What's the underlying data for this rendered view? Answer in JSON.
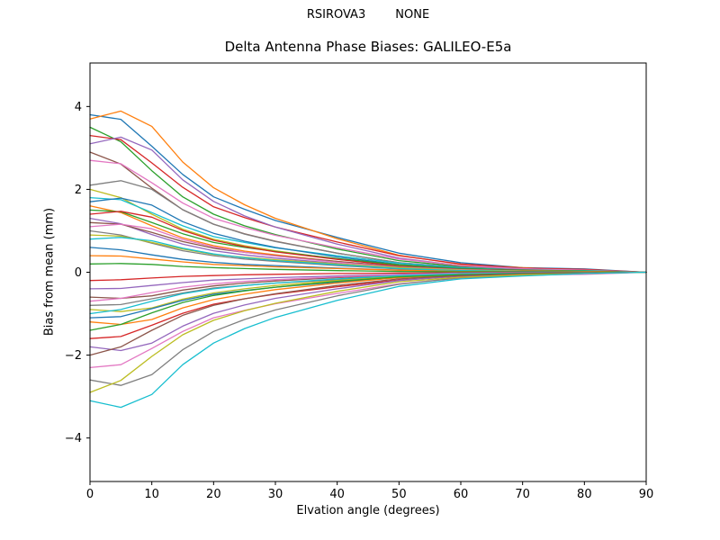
{
  "header": {
    "title": "RSIROVA3        NONE",
    "subtitle": "Delta Antenna Phase Biases: GALILEO-E5a"
  },
  "chart_data": {
    "type": "line",
    "suptitle": "RSIROVA3        NONE",
    "title": "Delta Antenna Phase Biases: GALILEO-E5a",
    "xlabel": "Elvation angle (degrees)",
    "ylabel": "Bias from mean (mm)",
    "xlim": [
      0,
      90
    ],
    "ylim": [
      -5.05,
      5.05
    ],
    "grid": false,
    "legend": "none",
    "frame_color": "#000000",
    "xticks": {
      "values": [
        0,
        10,
        20,
        30,
        40,
        50,
        60,
        70,
        80,
        90
      ],
      "labels": [
        "0",
        "10",
        "20",
        "30",
        "40",
        "50",
        "60",
        "70",
        "80",
        "90"
      ]
    },
    "yticks": {
      "values": [
        -4,
        -2,
        0,
        2,
        4
      ],
      "labels": [
        "−4",
        "−2",
        "0",
        "2",
        "4"
      ]
    },
    "x": [
      0,
      5,
      10,
      15,
      20,
      25,
      30,
      40,
      50,
      60,
      70,
      80,
      90
    ],
    "series": [
      {
        "color": "#1f77b4",
        "values": [
          3.8,
          3.69,
          3.04,
          2.36,
          1.82,
          1.52,
          1.25,
          0.84,
          0.46,
          0.23,
          0.11,
          0.08,
          0
        ]
      },
      {
        "color": "#ff7f0e",
        "values": [
          3.7,
          3.89,
          3.52,
          2.66,
          2.04,
          1.63,
          1.3,
          0.81,
          0.41,
          0.19,
          0.11,
          0.04,
          0
        ]
      },
      {
        "color": "#2ca02c",
        "values": [
          3.5,
          3.15,
          2.45,
          1.82,
          1.4,
          1.12,
          0.91,
          0.56,
          0.28,
          0.14,
          0.07,
          0.04,
          0
        ]
      },
      {
        "color": "#d62728",
        "values": [
          3.3,
          3.2,
          2.64,
          2.05,
          1.58,
          1.32,
          1.09,
          0.73,
          0.4,
          0.2,
          0.1,
          0.07,
          0
        ]
      },
      {
        "color": "#9467bd",
        "values": [
          3.1,
          3.26,
          2.95,
          2.23,
          1.71,
          1.36,
          1.09,
          0.68,
          0.34,
          0.16,
          0.09,
          0.03,
          0
        ]
      },
      {
        "color": "#8c564b",
        "values": [
          2.9,
          2.61,
          2.03,
          1.51,
          1.16,
          0.93,
          0.75,
          0.46,
          0.23,
          0.12,
          0.06,
          0.03,
          0
        ]
      },
      {
        "color": "#e377c2",
        "values": [
          2.7,
          2.62,
          2.16,
          1.67,
          1.3,
          1.08,
          0.89,
          0.59,
          0.32,
          0.16,
          0.08,
          0.05,
          0
        ]
      },
      {
        "color": "#7f7f7f",
        "values": [
          2.1,
          2.21,
          2.0,
          1.51,
          1.16,
          0.92,
          0.74,
          0.46,
          0.23,
          0.11,
          0.06,
          0.02,
          0
        ]
      },
      {
        "color": "#bcbd22",
        "values": [
          2.0,
          1.8,
          1.4,
          1.04,
          0.8,
          0.64,
          0.52,
          0.32,
          0.16,
          0.08,
          0.04,
          0.02,
          0
        ]
      },
      {
        "color": "#17becf",
        "values": [
          1.8,
          1.75,
          1.44,
          1.12,
          0.86,
          0.72,
          0.59,
          0.4,
          0.22,
          0.11,
          0.05,
          0.04,
          0
        ]
      },
      {
        "color": "#1f77b4",
        "values": [
          1.7,
          1.79,
          1.62,
          1.22,
          0.94,
          0.75,
          0.6,
          0.37,
          0.19,
          0.09,
          0.05,
          0.02,
          0
        ]
      },
      {
        "color": "#ff7f0e",
        "values": [
          1.6,
          1.44,
          1.12,
          0.83,
          0.64,
          0.51,
          0.42,
          0.26,
          0.13,
          0.06,
          0.03,
          0.02,
          0
        ]
      },
      {
        "color": "#2ca02c",
        "values": [
          1.5,
          1.46,
          1.2,
          0.93,
          0.72,
          0.6,
          0.5,
          0.33,
          0.18,
          0.09,
          0.05,
          0.03,
          0
        ]
      },
      {
        "color": "#d62728",
        "values": [
          1.4,
          1.47,
          1.33,
          1.01,
          0.77,
          0.62,
          0.49,
          0.31,
          0.15,
          0.07,
          0.04,
          0.01,
          0
        ]
      },
      {
        "color": "#9467bd",
        "values": [
          1.3,
          1.17,
          0.91,
          0.68,
          0.52,
          0.42,
          0.34,
          0.21,
          0.1,
          0.05,
          0.03,
          0.01,
          0
        ]
      },
      {
        "color": "#8c564b",
        "values": [
          1.2,
          1.16,
          0.96,
          0.74,
          0.58,
          0.48,
          0.4,
          0.26,
          0.14,
          0.07,
          0.04,
          0.02,
          0
        ]
      },
      {
        "color": "#e377c2",
        "values": [
          1.1,
          1.16,
          1.05,
          0.79,
          0.61,
          0.48,
          0.39,
          0.24,
          0.12,
          0.06,
          0.03,
          0.01,
          0
        ]
      },
      {
        "color": "#7f7f7f",
        "values": [
          1.0,
          0.9,
          0.7,
          0.52,
          0.4,
          0.32,
          0.26,
          0.16,
          0.08,
          0.04,
          0.02,
          0.01,
          0
        ]
      },
      {
        "color": "#bcbd22",
        "values": [
          0.9,
          0.87,
          0.72,
          0.56,
          0.43,
          0.36,
          0.3,
          0.2,
          0.11,
          0.05,
          0.03,
          0.02,
          0
        ]
      },
      {
        "color": "#17becf",
        "values": [
          0.8,
          0.84,
          0.76,
          0.58,
          0.44,
          0.35,
          0.28,
          0.18,
          0.09,
          0.04,
          0.02,
          0.01,
          0
        ]
      },
      {
        "color": "#1f77b4",
        "values": [
          0.6,
          0.54,
          0.42,
          0.31,
          0.24,
          0.19,
          0.16,
          0.1,
          0.05,
          0.02,
          0.01,
          0.01,
          0
        ]
      },
      {
        "color": "#ff7f0e",
        "values": [
          0.4,
          0.39,
          0.32,
          0.25,
          0.19,
          0.16,
          0.13,
          0.09,
          0.05,
          0.02,
          0.01,
          0.01,
          0
        ]
      },
      {
        "color": "#2ca02c",
        "values": [
          0.2,
          0.21,
          0.19,
          0.14,
          0.11,
          0.09,
          0.07,
          0.04,
          0.02,
          0.01,
          0.01,
          0.0,
          0
        ]
      },
      {
        "color": "#d62728",
        "values": [
          -0.2,
          -0.18,
          -0.14,
          -0.1,
          -0.08,
          -0.06,
          -0.05,
          -0.03,
          -0.02,
          -0.01,
          0.0,
          0.0,
          0
        ]
      },
      {
        "color": "#9467bd",
        "values": [
          -0.4,
          -0.39,
          -0.32,
          -0.25,
          -0.19,
          -0.16,
          -0.13,
          -0.09,
          -0.05,
          -0.02,
          -0.01,
          -0.01,
          0
        ]
      },
      {
        "color": "#8c564b",
        "values": [
          -0.6,
          -0.63,
          -0.57,
          -0.43,
          -0.33,
          -0.26,
          -0.21,
          -0.13,
          -0.07,
          -0.03,
          -0.02,
          -0.01,
          0
        ]
      },
      {
        "color": "#e377c2",
        "values": [
          -0.7,
          -0.63,
          -0.49,
          -0.36,
          -0.28,
          -0.22,
          -0.18,
          -0.11,
          -0.06,
          -0.03,
          -0.01,
          -0.01,
          0
        ]
      },
      {
        "color": "#7f7f7f",
        "values": [
          -0.8,
          -0.78,
          -0.64,
          -0.5,
          -0.38,
          -0.32,
          -0.26,
          -0.18,
          -0.1,
          -0.05,
          -0.02,
          -0.02,
          0
        ]
      },
      {
        "color": "#bcbd22",
        "values": [
          -0.9,
          -0.95,
          -0.86,
          -0.65,
          -0.5,
          -0.4,
          -0.32,
          -0.2,
          -0.1,
          -0.05,
          -0.03,
          -0.01,
          0
        ]
      },
      {
        "color": "#17becf",
        "values": [
          -1.0,
          -0.9,
          -0.7,
          -0.52,
          -0.4,
          -0.32,
          -0.26,
          -0.16,
          -0.08,
          -0.04,
          -0.02,
          -0.01,
          0
        ]
      },
      {
        "color": "#1f77b4",
        "values": [
          -1.1,
          -1.07,
          -0.88,
          -0.68,
          -0.53,
          -0.44,
          -0.36,
          -0.24,
          -0.13,
          -0.07,
          -0.03,
          -0.02,
          0
        ]
      },
      {
        "color": "#ff7f0e",
        "values": [
          -1.2,
          -1.26,
          -1.14,
          -0.86,
          -0.66,
          -0.53,
          -0.42,
          -0.26,
          -0.13,
          -0.06,
          -0.04,
          -0.01,
          0
        ]
      },
      {
        "color": "#2ca02c",
        "values": [
          -1.4,
          -1.26,
          -0.98,
          -0.73,
          -0.56,
          -0.45,
          -0.36,
          -0.22,
          -0.11,
          -0.06,
          -0.03,
          -0.01,
          0
        ]
      },
      {
        "color": "#d62728",
        "values": [
          -1.6,
          -1.55,
          -1.28,
          -0.99,
          -0.77,
          -0.64,
          -0.53,
          -0.35,
          -0.19,
          -0.1,
          -0.05,
          -0.03,
          0
        ]
      },
      {
        "color": "#9467bd",
        "values": [
          -1.8,
          -1.89,
          -1.71,
          -1.3,
          -0.99,
          -0.79,
          -0.63,
          -0.4,
          -0.2,
          -0.09,
          -0.05,
          -0.02,
          0
        ]
      },
      {
        "color": "#8c564b",
        "values": [
          -2.0,
          -1.8,
          -1.4,
          -1.04,
          -0.8,
          -0.64,
          -0.52,
          -0.32,
          -0.16,
          -0.08,
          -0.04,
          -0.02,
          0
        ]
      },
      {
        "color": "#e377c2",
        "values": [
          -2.3,
          -2.23,
          -1.84,
          -1.43,
          -1.1,
          -0.92,
          -0.76,
          -0.51,
          -0.28,
          -0.14,
          -0.07,
          -0.05,
          0
        ]
      },
      {
        "color": "#7f7f7f",
        "values": [
          -2.6,
          -2.73,
          -2.47,
          -1.87,
          -1.43,
          -1.14,
          -0.91,
          -0.57,
          -0.29,
          -0.13,
          -0.08,
          -0.03,
          0
        ]
      },
      {
        "color": "#bcbd22",
        "values": [
          -2.9,
          -2.61,
          -2.03,
          -1.51,
          -1.16,
          -0.93,
          -0.75,
          -0.46,
          -0.23,
          -0.12,
          -0.06,
          -0.03,
          0
        ]
      },
      {
        "color": "#17becf",
        "values": [
          -3.1,
          -3.26,
          -2.95,
          -2.23,
          -1.71,
          -1.36,
          -1.09,
          -0.68,
          -0.34,
          -0.16,
          -0.09,
          -0.03,
          0
        ]
      }
    ]
  }
}
